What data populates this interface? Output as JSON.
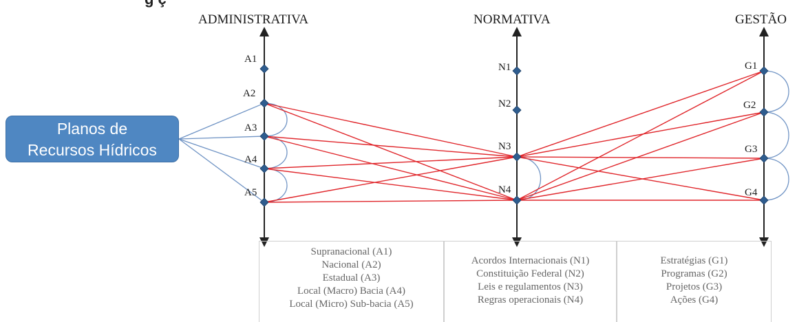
{
  "page": {
    "top_text": "g                                                                   ç"
  },
  "columns": {
    "administrativa": "ADMINISTRATIVA",
    "normativa": "NORMATIVA",
    "gestao": "GESTÃO"
  },
  "plan_box": {
    "line1": "Planos de",
    "line2": "Recursos Hídricos"
  },
  "nodes": {
    "admin": [
      "A1",
      "A2",
      "A3",
      "A4",
      "A5"
    ],
    "norm": [
      "N1",
      "N2",
      "N3",
      "N4"
    ],
    "gest": [
      "G1",
      "G2",
      "G3",
      "G4"
    ]
  },
  "legend": {
    "admin": [
      "Supranacional (A1)",
      "Nacional (A2)",
      "Estadual (A3)",
      "Local (Macro) Bacia (A4)",
      "Local (Micro) Sub-bacia (A5)"
    ],
    "norm": [
      "Acordos Internacionais (N1)",
      "Constituição Federal (N2)",
      "Leis e regulamentos (N3)",
      "Regras operacionais (N4)"
    ],
    "gest": [
      "Estratégias (G1)",
      "Programas (G2)",
      "Projetos (G3)",
      "Ações (G4)"
    ]
  },
  "colors": {
    "red_links": "#e0262b",
    "blue_links": "#6f93c4",
    "box_fill": "#4f87c2",
    "node_fill": "#2f5d8f",
    "axis": "#222222"
  }
}
